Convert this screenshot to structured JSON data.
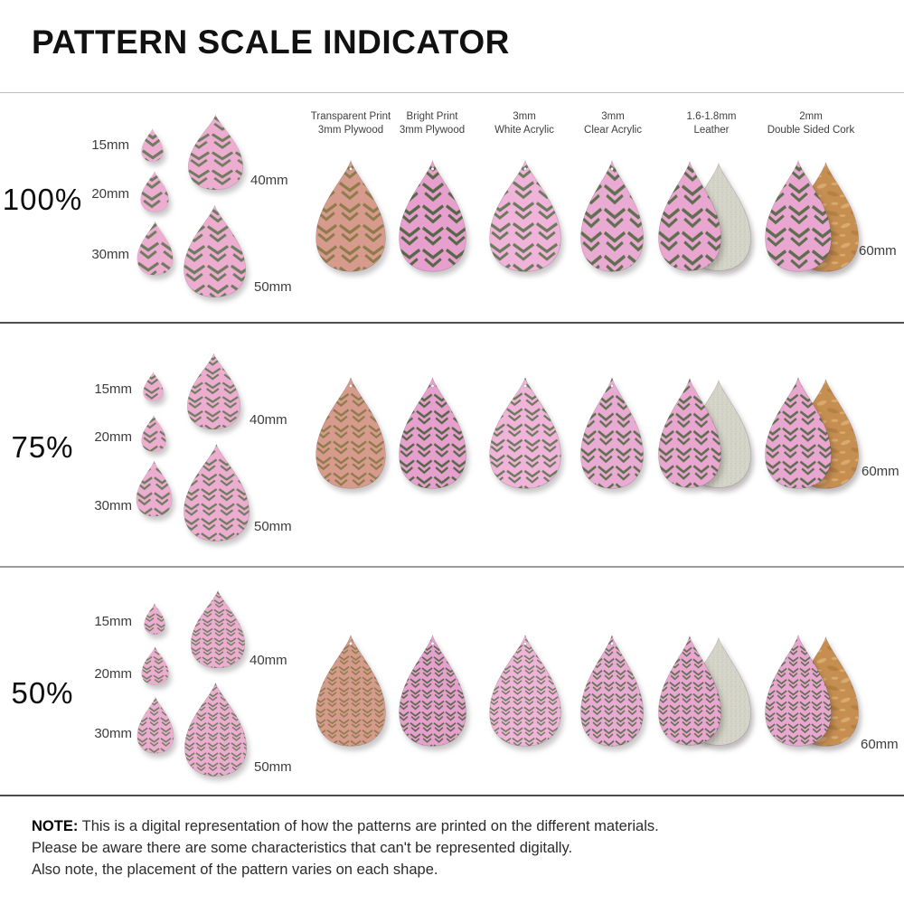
{
  "title": "PATTERN SCALE INDICATOR",
  "columns": [
    {
      "line1": "Transparent Print",
      "line2": "3mm Plywood"
    },
    {
      "line1": "Bright Print",
      "line2": "3mm Plywood"
    },
    {
      "line1": "3mm",
      "line2": "White Acrylic"
    },
    {
      "line1": "3mm",
      "line2": "Clear Acrylic"
    },
    {
      "line1": "1.6-1.8mm",
      "line2": "Leather"
    },
    {
      "line1": "2mm",
      "line2": "Double Sided Cork"
    }
  ],
  "rows": [
    {
      "scale_label": "100%",
      "pattern_scale": 1
    },
    {
      "scale_label": "75%",
      "pattern_scale": 0.75
    },
    {
      "scale_label": "50%",
      "pattern_scale": 0.5
    }
  ],
  "sizes": [
    "15mm",
    "20mm",
    "30mm",
    "40mm",
    "50mm"
  ],
  "size_60_label": "60mm",
  "note": {
    "prefix": "NOTE:",
    "line1": "This is a digital representation of how the patterns are printed on the different materials.",
    "line2": "Please be aware there are some characteristics that can't be represented digitally.",
    "line3": "Also note, the placement of the pattern varies on each shape."
  },
  "variants": {
    "cluster": {
      "type": "chevron",
      "bg": "#ecadd0",
      "stroke": "#6d7b5e"
    },
    "wood": {
      "type": "chevron",
      "bg": "#d79b8e",
      "stroke": "#8d7b4a"
    },
    "bright": {
      "type": "chevron",
      "bg": "#e7a0ce",
      "stroke": "#566748"
    },
    "white": {
      "type": "chevron",
      "bg": "#f0b3d9",
      "stroke": "#6b7a5b"
    },
    "clear": {
      "type": "chevron",
      "bg": "#e9abd3",
      "stroke": "#60704f"
    },
    "leather": {
      "type": "chevron",
      "bg": "#e8a6d0",
      "stroke": "#5d6d4e"
    },
    "suede": {
      "type": "suede",
      "bg": "#d3d3c7",
      "dark": "#bfbfb0",
      "light": "#e6e6dc"
    },
    "cork": {
      "type": "cork",
      "bg": "#c68f51",
      "light": "#d9ab6c",
      "dark": "#ad7c3e"
    }
  }
}
